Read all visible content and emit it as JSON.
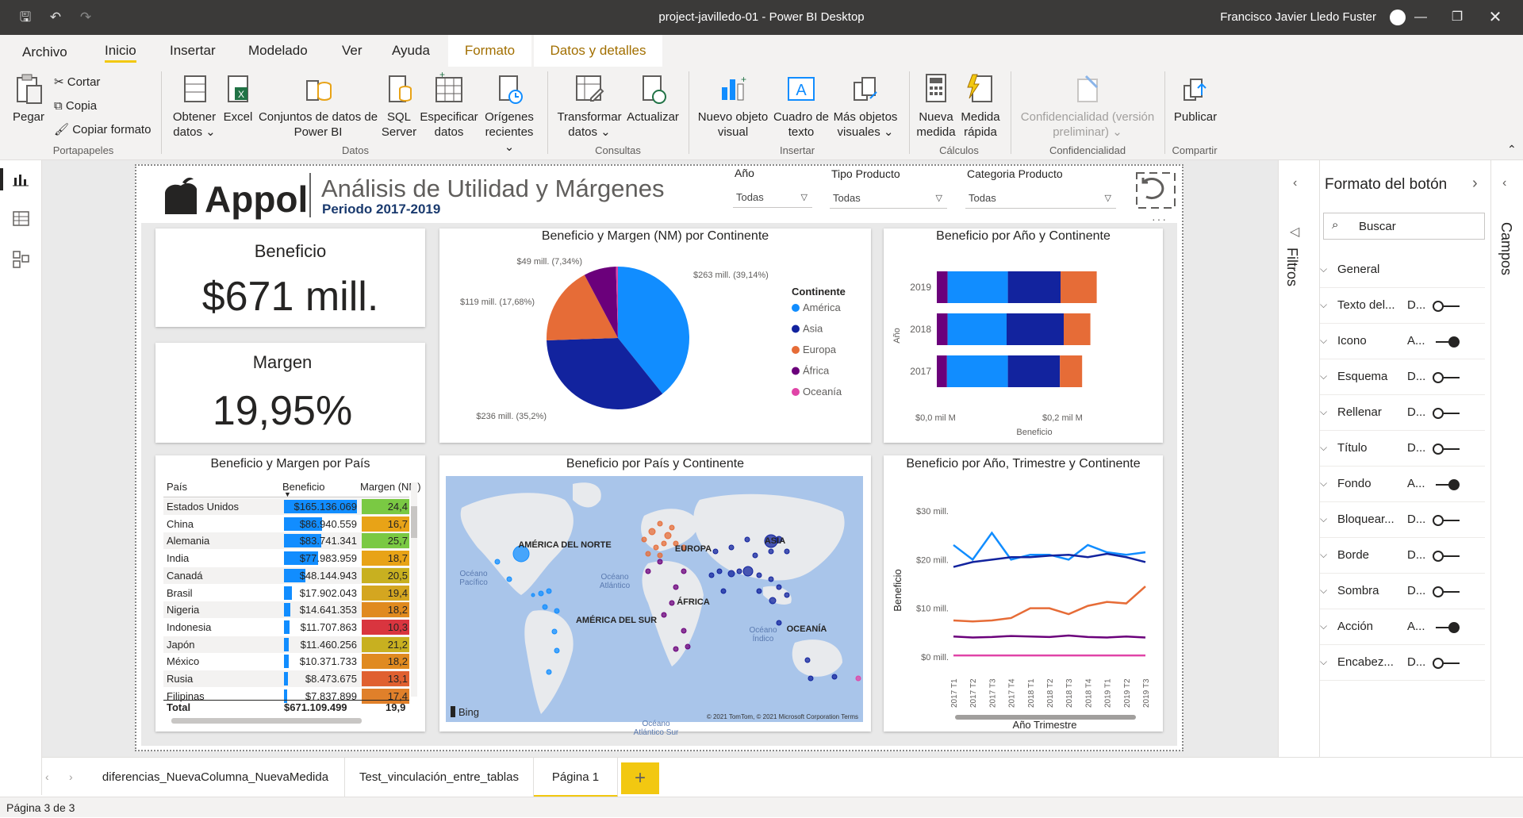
{
  "window": {
    "title": "project-javilledo-01 - Power BI Desktop",
    "user": "Francisco Javier Lledo Fuster"
  },
  "tabs": [
    "Archivo",
    "Inicio",
    "Insertar",
    "Modelado",
    "Ver",
    "Ayuda",
    "Formato",
    "Datos y detalles"
  ],
  "ribbon": {
    "pegar": "Pegar",
    "cortar": "Cortar",
    "copia": "Copia",
    "copiar_formato": "Copiar formato",
    "obtener": [
      "Obtener",
      "datos ⌄"
    ],
    "excel": "Excel",
    "conjuntos": [
      "Conjuntos de datos de",
      "Power BI"
    ],
    "sql": [
      "SQL",
      "Server"
    ],
    "especificar": [
      "Especificar",
      "datos"
    ],
    "origenes": [
      "Orígenes",
      "recientes ⌄"
    ],
    "transformar": [
      "Transformar",
      "datos ⌄"
    ],
    "actualizar": "Actualizar",
    "nuevo_objeto": [
      "Nuevo objeto",
      "visual"
    ],
    "cuadro_texto": [
      "Cuadro de",
      "texto"
    ],
    "mas_objetos": [
      "Más objetos",
      "visuales ⌄"
    ],
    "nueva_medida": [
      "Nueva",
      "medida"
    ],
    "medida_rapida": [
      "Medida",
      "rápida"
    ],
    "confidencialidad": [
      "Confidencialidad (versión",
      "preliminar) ⌄"
    ],
    "publicar": "Publicar",
    "groups": {
      "portapapeles": "Portapapeles",
      "datos": "Datos",
      "consultas": "Consultas",
      "insertar": "Insertar",
      "calculos": "Cálculos",
      "confidencialidad": "Confidencialidad",
      "compartir": "Compartir"
    }
  },
  "report": {
    "logo": "Appol",
    "title": "Análisis de Utilidad y Márgenes",
    "subtitle": "Periodo 2017-2019",
    "slicers": [
      {
        "label": "Año",
        "value": "Todas"
      },
      {
        "label": "Tipo Producto",
        "value": "Todas"
      },
      {
        "label": "Categoria Producto",
        "value": "Todas"
      }
    ],
    "kpi_beneficio": {
      "label": "Beneficio",
      "value": "$671 mill."
    },
    "kpi_margen": {
      "label": "Margen",
      "value": "19,95%"
    },
    "pie": {
      "title": "Beneficio y Margen (NM) por Continente",
      "legend_title": "Continente",
      "labels": [
        "$263 mill. (39,14%)",
        "$236 mill. (35,2%)",
        "$119 mill. (17,68%)",
        "$49 mill. (7,34%)"
      ]
    },
    "bar": {
      "title": "Beneficio por Año y Continente",
      "ylabel": "Año",
      "xlabel": "Beneficio",
      "xticks": [
        "$0,0 mil M",
        "$0,2 mil M"
      ]
    },
    "table": {
      "title": "Beneficio y Margen por País",
      "headers": [
        "País",
        "Beneficio",
        "Margen (NM)"
      ],
      "rows": [
        {
          "pais": "Estados Unidos",
          "beneficio": "$165.136.069",
          "margen": "24,4"
        },
        {
          "pais": "China",
          "beneficio": "$86.940.559",
          "margen": "16,7"
        },
        {
          "pais": "Alemania",
          "beneficio": "$83.741.341",
          "margen": "25,7"
        },
        {
          "pais": "India",
          "beneficio": "$77.983.959",
          "margen": "18,7"
        },
        {
          "pais": "Canadá",
          "beneficio": "$48.144.943",
          "margen": "20,5"
        },
        {
          "pais": "Brasil",
          "beneficio": "$17.902.043",
          "margen": "19,4"
        },
        {
          "pais": "Nigeria",
          "beneficio": "$14.641.353",
          "margen": "18,2"
        },
        {
          "pais": "Indonesia",
          "beneficio": "$11.707.863",
          "margen": "10,3"
        },
        {
          "pais": "Japón",
          "beneficio": "$11.460.256",
          "margen": "21,2"
        },
        {
          "pais": "México",
          "beneficio": "$10.371.733",
          "margen": "18,2"
        },
        {
          "pais": "Rusia",
          "beneficio": "$8.473.675",
          "margen": "13,1"
        },
        {
          "pais": "Filipinas",
          "beneficio": "$7.837.899",
          "margen": "17,4"
        }
      ],
      "total_label": "Total",
      "total_beneficio": "$671.109.499",
      "total_margen": "19,9"
    },
    "map": {
      "title": "Beneficio por País y Continente",
      "labels": [
        "AMÉRICA DEL NORTE",
        "EUROPA",
        "ASIA",
        "ÁFRICA",
        "AMÉRICA DEL SUR",
        "OCEANÍA",
        "Océano Pacífico",
        "Océano Atlántico",
        "Océano Índico",
        "Océano Atlántico Sur"
      ],
      "bing": "Bing",
      "attribution": "© 2021 TomTom, © 2021 Microsoft Corporation  Terms"
    },
    "line": {
      "title": "Beneficio por Año, Trimestre y Continente",
      "ylabel": "Beneficio",
      "xlabel": "Año Trimestre",
      "yticks": [
        "$30 mill.",
        "$20 mill.",
        "$10 mill.",
        "$0 mill."
      ]
    }
  },
  "chart_data": [
    {
      "type": "pie",
      "title": "Beneficio y Margen (NM) por Continente",
      "legend_title": "Continente",
      "categories": [
        "América",
        "Asia",
        "Europa",
        "África",
        "Oceanía"
      ],
      "values": [
        263,
        236,
        119,
        49,
        3
      ],
      "percent": [
        39.14,
        35.2,
        17.68,
        7.34,
        0.64
      ],
      "colors": [
        "#118dff",
        "#12239e",
        "#e66c37",
        "#6b007b",
        "#e044a7"
      ]
    },
    {
      "type": "bar",
      "title": "Beneficio por Año y Continente",
      "ylabel": "Año",
      "xlabel": "Beneficio",
      "stacked": true,
      "categories": [
        "2019",
        "2018",
        "2017"
      ],
      "series": [
        {
          "name": "África",
          "values": [
            17,
            17,
            16
          ]
        },
        {
          "name": "América",
          "values": [
            95,
            93,
            96
          ]
        },
        {
          "name": "Asia",
          "values": [
            83,
            90,
            82
          ]
        },
        {
          "name": "Europa",
          "values": [
            57,
            42,
            35
          ]
        }
      ],
      "xlim": [
        0,
        250
      ]
    },
    {
      "type": "line",
      "title": "Beneficio por Año, Trimestre y Continente",
      "xlabel": "Año Trimestre",
      "ylabel": "Beneficio",
      "x": [
        "2017 T1",
        "2017 T2",
        "2017 T3",
        "2017 T4",
        "2018 T1",
        "2018 T2",
        "2018 T3",
        "2018 T4",
        "2019 T1",
        "2019 T2",
        "2019 T3"
      ],
      "ylim": [
        0,
        30
      ],
      "series": [
        {
          "name": "América",
          "color": "#118dff",
          "values": [
            23,
            20,
            25.5,
            20,
            21,
            21,
            20,
            23,
            21.5,
            21,
            21.5
          ]
        },
        {
          "name": "Asia",
          "color": "#12239e",
          "values": [
            18.5,
            19.5,
            20,
            20.5,
            20.5,
            20.8,
            21,
            20.5,
            21.2,
            20.5,
            19.5
          ]
        },
        {
          "name": "Europa",
          "color": "#e66c37",
          "values": [
            7.5,
            7.3,
            7.5,
            8,
            10,
            10,
            8.8,
            10.5,
            11.3,
            11,
            14.5
          ]
        },
        {
          "name": "África",
          "color": "#6b007b",
          "values": [
            4.2,
            4,
            4.1,
            4.3,
            4.2,
            4.1,
            4.4,
            4.1,
            4,
            4.2,
            4
          ]
        },
        {
          "name": "Oceanía",
          "color": "#e044a7",
          "values": [
            0.3,
            0.3,
            0.3,
            0.3,
            0.3,
            0.3,
            0.3,
            0.3,
            0.3,
            0.3,
            0.3
          ]
        }
      ]
    }
  ],
  "filters_label": "Filtros",
  "right_panel": {
    "title": "Formato del botón",
    "search_placeholder": "Buscar",
    "campos": "Campos",
    "rows": [
      {
        "label": "General",
        "val": "",
        "toggle": ""
      },
      {
        "label": "Texto del...",
        "val": "D...",
        "toggle": "off"
      },
      {
        "label": "Icono",
        "val": "A...",
        "toggle": "on"
      },
      {
        "label": "Esquema",
        "val": "D...",
        "toggle": "off"
      },
      {
        "label": "Rellenar",
        "val": "D...",
        "toggle": "off"
      },
      {
        "label": "Título",
        "val": "D...",
        "toggle": "off"
      },
      {
        "label": "Fondo",
        "val": "A...",
        "toggle": "on"
      },
      {
        "label": "Bloquear...",
        "val": "D...",
        "toggle": "off"
      },
      {
        "label": "Borde",
        "val": "D...",
        "toggle": "off"
      },
      {
        "label": "Sombra",
        "val": "D...",
        "toggle": "off"
      },
      {
        "label": "Acción",
        "val": "A...",
        "toggle": "on"
      },
      {
        "label": "Encabez...",
        "val": "D...",
        "toggle": "off"
      }
    ]
  },
  "page_tabs": [
    "diferencias_NuevaColumna_NuevaMedida",
    "Test_vinculación_entre_tablas",
    "Página 1"
  ],
  "add_page": "+",
  "status": "Página 3 de 3"
}
